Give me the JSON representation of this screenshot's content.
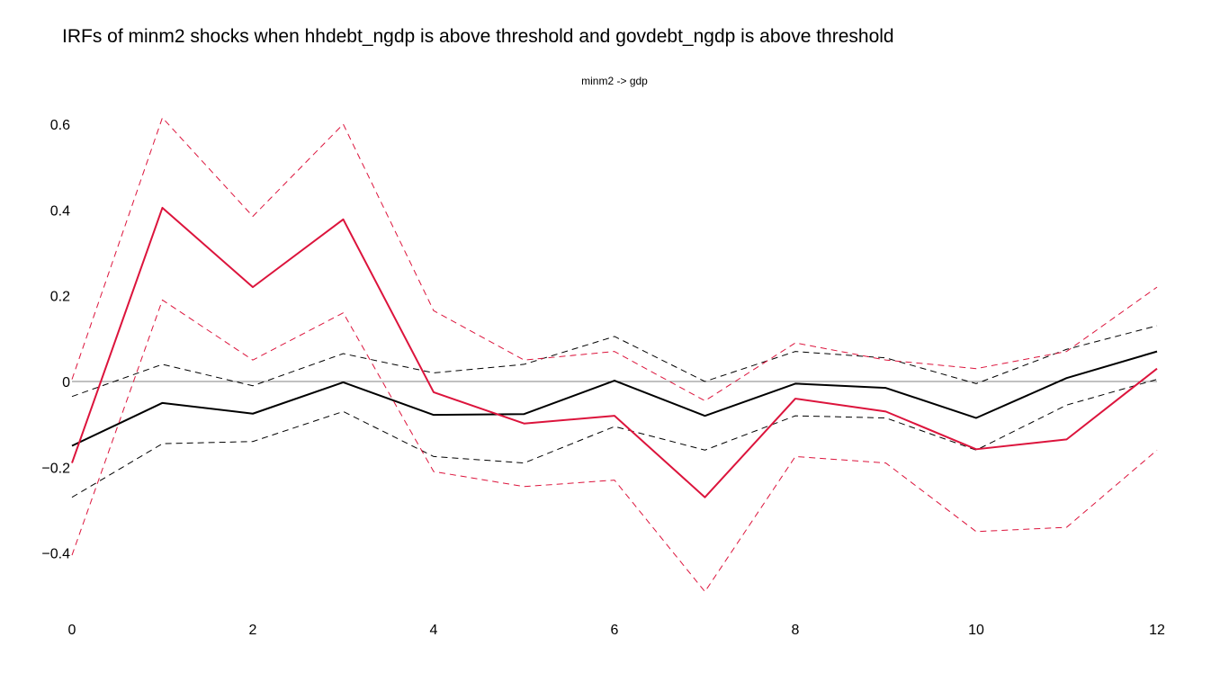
{
  "chart_data": {
    "type": "line",
    "title": "IRFs of minm2 shocks when hhdebt_ngdp is above threshold and govdebt_ngdp is above threshold",
    "subtitle": "minm2 -> gdp",
    "xlabel": "",
    "ylabel": "",
    "xlim": [
      0,
      12
    ],
    "ylim": [
      -0.55,
      0.65
    ],
    "grid": false,
    "zero_line": true,
    "x": [
      0,
      1,
      2,
      3,
      4,
      5,
      6,
      7,
      8,
      9,
      10,
      11,
      12
    ],
    "x_ticks": [
      "0",
      "2",
      "4",
      "6",
      "8",
      "10",
      "12"
    ],
    "x_tick_values": [
      0,
      2,
      4,
      6,
      8,
      10,
      12
    ],
    "y_ticks": [
      "0.6",
      "0.4",
      "0.2",
      "0",
      "−0.2",
      "−0.4"
    ],
    "y_tick_values": [
      0.6,
      0.4,
      0.2,
      0,
      -0.2,
      -0.4
    ],
    "series": [
      {
        "color": "#000000",
        "dash": "dash",
        "values": [
          -0.035,
          0.04,
          -0.01,
          0.065,
          0.02,
          0.04,
          0.105,
          0.0,
          0.07,
          0.055,
          -0.005,
          0.075,
          0.13
        ]
      },
      {
        "color": "#000000",
        "dash": "dash",
        "values": [
          -0.27,
          -0.145,
          -0.14,
          -0.07,
          -0.175,
          -0.19,
          -0.105,
          -0.16,
          -0.08,
          -0.085,
          -0.16,
          -0.055,
          0.005
        ]
      },
      {
        "color": "#000000",
        "dash": "solid",
        "values": [
          -0.15,
          -0.05,
          -0.075,
          -0.002,
          -0.078,
          -0.076,
          0.002,
          -0.08,
          -0.005,
          -0.015,
          -0.085,
          0.008,
          0.07
        ]
      },
      {
        "color": "#dc143c",
        "dash": "dash",
        "values": [
          0.005,
          0.615,
          0.385,
          0.6,
          0.165,
          0.05,
          0.07,
          -0.045,
          0.09,
          0.05,
          0.03,
          0.07,
          0.22
        ]
      },
      {
        "color": "#dc143c",
        "dash": "dash",
        "values": [
          -0.405,
          0.19,
          0.05,
          0.16,
          -0.21,
          -0.245,
          -0.23,
          -0.49,
          -0.175,
          -0.19,
          -0.35,
          -0.34,
          -0.16
        ]
      },
      {
        "color": "#dc143c",
        "dash": "solid",
        "values": [
          -0.19,
          0.405,
          0.22,
          0.378,
          -0.025,
          -0.098,
          -0.08,
          -0.27,
          -0.04,
          -0.07,
          -0.158,
          -0.135,
          0.03
        ]
      }
    ]
  }
}
